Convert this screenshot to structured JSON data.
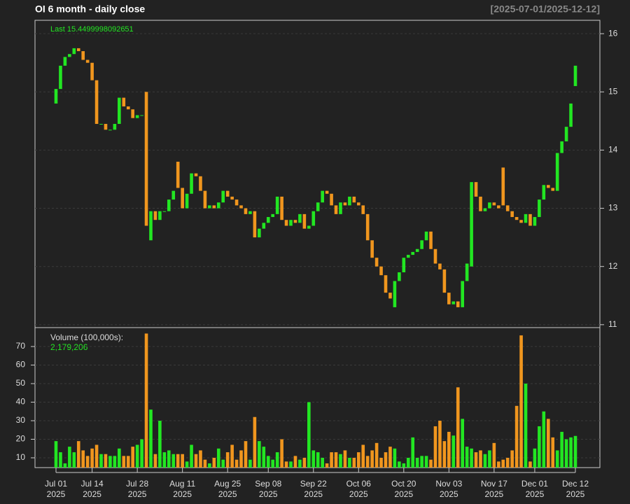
{
  "chart_data": [
    {
      "type": "candlestick",
      "title": "OI  6 month - daily close",
      "subtitle": "[2025-07-01/2025-12-12]",
      "last_label": "Last 15.4499998092651",
      "up_color": "#22e622",
      "down_color": "#f0961e",
      "categories": [
        "Jul 01\n2025",
        null,
        null,
        null,
        null,
        null,
        null,
        null,
        "Jul 14\n2025",
        null,
        null,
        null,
        null,
        null,
        null,
        null,
        null,
        null,
        "Jul 28\n2025",
        null,
        null,
        null,
        null,
        null,
        null,
        null,
        null,
        null,
        "Aug 11\n2025",
        null,
        null,
        null,
        null,
        null,
        null,
        null,
        null,
        null,
        "Aug 25\n2025",
        null,
        null,
        null,
        null,
        null,
        null,
        null,
        null,
        "Sep 08\n2025",
        null,
        null,
        null,
        null,
        null,
        null,
        null,
        null,
        null,
        "Sep 22\n2025",
        null,
        null,
        null,
        null,
        null,
        null,
        null,
        null,
        null,
        "Oct 06\n2025",
        null,
        null,
        null,
        null,
        null,
        null,
        null,
        null,
        null,
        "Oct 20\n2025",
        null,
        null,
        null,
        null,
        null,
        null,
        null,
        null,
        null,
        "Nov 03\n2025",
        null,
        null,
        null,
        null,
        null,
        null,
        null,
        null,
        null,
        "Nov 17\n2025",
        null,
        null,
        null,
        null,
        null,
        null,
        null,
        null,
        "Dec 01\n2025",
        null,
        null,
        null,
        null,
        null,
        null,
        null,
        null,
        "Dec 12\n2025"
      ],
      "open": [
        14.8,
        15.05,
        15.45,
        15.6,
        15.65,
        15.75,
        15.7,
        15.55,
        15.5,
        15.2,
        14.45,
        14.45,
        14.35,
        14.35,
        14.45,
        14.9,
        14.75,
        14.7,
        14.55,
        14.6,
        15.0,
        12.45,
        12.95,
        12.8,
        12.95,
        12.95,
        13.15,
        13.8,
        13.35,
        13.0,
        13.25,
        13.6,
        13.55,
        13.3,
        13.0,
        13.05,
        13.0,
        13.1,
        13.3,
        13.2,
        13.15,
        13.05,
        13.0,
        12.9,
        12.95,
        12.5,
        12.65,
        12.75,
        12.85,
        12.9,
        13.2,
        12.8,
        12.7,
        12.8,
        12.75,
        12.9,
        12.65,
        12.7,
        12.95,
        13.1,
        13.3,
        13.25,
        13.05,
        12.9,
        13.1,
        13.05,
        13.2,
        13.1,
        13.05,
        12.9,
        12.45,
        12.15,
        12.0,
        11.85,
        11.55,
        11.3,
        11.75,
        11.9,
        12.15,
        12.2,
        12.25,
        12.3,
        12.45,
        12.6,
        12.3,
        12.05,
        11.95,
        11.55,
        11.35,
        11.4,
        11.3,
        11.75,
        12.0,
        13.45,
        13.2,
        12.95,
        13.0,
        13.1,
        13.05,
        13.7,
        13.05,
        12.95,
        12.85,
        12.8,
        12.75,
        12.9,
        12.7,
        12.85,
        13.15,
        13.4,
        13.35,
        13.3,
        13.95,
        14.15,
        14.4,
        15.1
      ],
      "close": [
        15.05,
        15.45,
        15.6,
        15.65,
        15.75,
        15.7,
        15.55,
        15.5,
        15.2,
        14.45,
        14.45,
        14.35,
        14.35,
        14.45,
        14.9,
        14.75,
        14.7,
        14.55,
        14.6,
        14.6,
        12.7,
        12.95,
        12.8,
        12.95,
        12.95,
        13.15,
        13.3,
        13.35,
        13.0,
        13.25,
        13.6,
        13.55,
        13.3,
        13.0,
        13.05,
        13.0,
        13.1,
        13.3,
        13.2,
        13.15,
        13.05,
        13.0,
        12.9,
        12.95,
        12.5,
        12.65,
        12.75,
        12.85,
        12.9,
        13.2,
        12.8,
        12.7,
        12.8,
        12.75,
        12.9,
        12.65,
        12.7,
        12.95,
        13.1,
        13.3,
        13.25,
        13.05,
        12.9,
        13.1,
        13.05,
        13.2,
        13.1,
        13.05,
        12.9,
        12.45,
        12.15,
        12.0,
        11.85,
        11.55,
        11.45,
        11.75,
        11.9,
        12.15,
        12.2,
        12.25,
        12.3,
        12.45,
        12.6,
        12.3,
        12.05,
        11.95,
        11.55,
        11.35,
        11.4,
        11.3,
        11.75,
        12.05,
        13.45,
        13.2,
        12.95,
        13.0,
        13.1,
        13.05,
        13.0,
        13.05,
        12.95,
        12.85,
        12.8,
        12.75,
        12.9,
        12.7,
        12.85,
        13.15,
        13.4,
        13.35,
        13.3,
        13.95,
        14.15,
        14.4,
        14.8,
        15.45
      ],
      "ylim": [
        10.95,
        16.23
      ],
      "yticks": [
        11,
        12,
        13,
        14,
        15,
        16
      ],
      "grid": true
    },
    {
      "type": "bar",
      "label": "Volume (100,000s):",
      "last_label": "2,179,206",
      "values": [
        19,
        13,
        7,
        16,
        13,
        19,
        14,
        11,
        15,
        17,
        12,
        12,
        11,
        11,
        15,
        11,
        11,
        16,
        17,
        20,
        77,
        36,
        12,
        30,
        13,
        14,
        12,
        12,
        12,
        8,
        17,
        12,
        14,
        9,
        7,
        10,
        15,
        9,
        13,
        17,
        9,
        14,
        19,
        9,
        32,
        19,
        16,
        11,
        9,
        13,
        20,
        8,
        8,
        11,
        9,
        10,
        40,
        14,
        13,
        10,
        7,
        13,
        13,
        12,
        14,
        10,
        10,
        13,
        17,
        11,
        14,
        18,
        10,
        13,
        16,
        15,
        8,
        7,
        10,
        21,
        10,
        11,
        11,
        9,
        27,
        30,
        19,
        24,
        22,
        48,
        31,
        16,
        15,
        13,
        14,
        12,
        14,
        18,
        8,
        9,
        10,
        14,
        38,
        76,
        50,
        8,
        15,
        27,
        35,
        31,
        21,
        14,
        24,
        20,
        21,
        21.79206
      ],
      "ylim": [
        4.72,
        80.2
      ],
      "yticks": [
        10,
        20,
        30,
        40,
        50,
        60,
        70
      ],
      "grid": true
    }
  ]
}
